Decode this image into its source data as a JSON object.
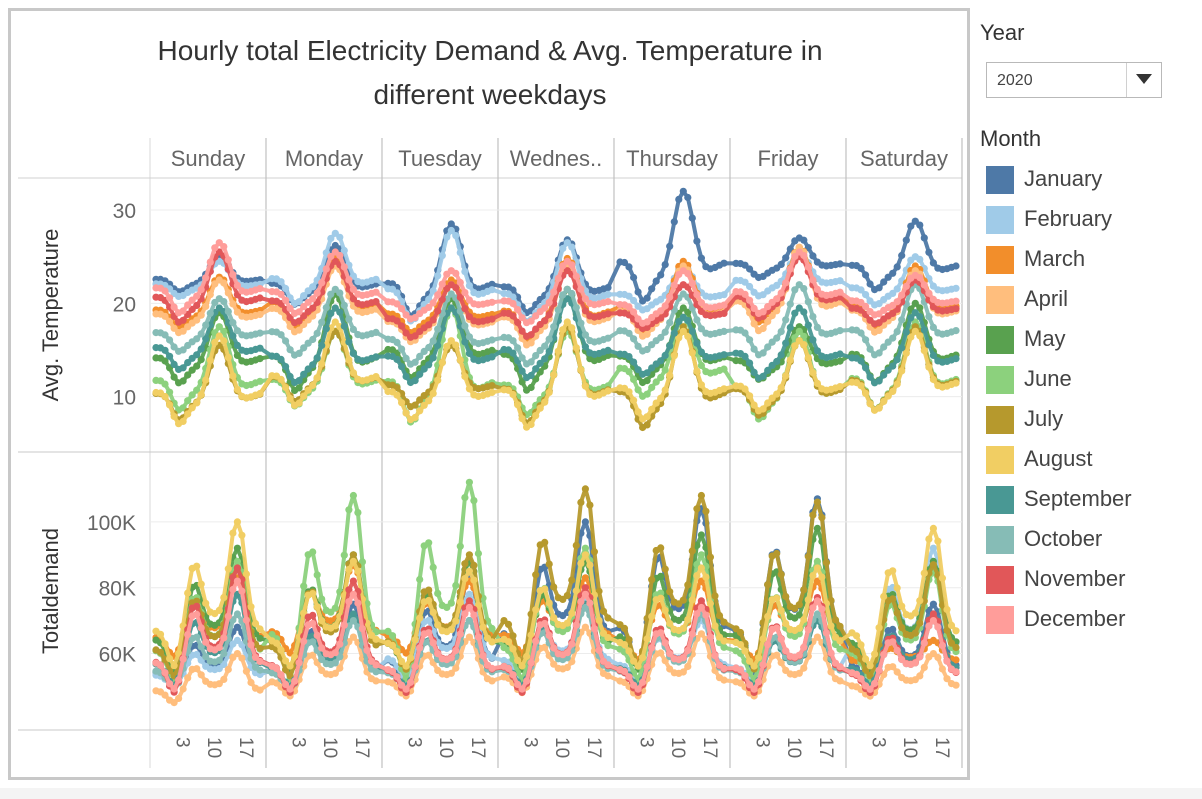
{
  "title_line1": "Hourly total Electricity Demand & Avg. Temperature in",
  "title_line2": "different weekdays",
  "filters": {
    "year_label": "Year",
    "year_value": "2020",
    "month_label": "Month"
  },
  "legend": [
    {
      "label": "January",
      "color": "#4e79a7"
    },
    {
      "label": "February",
      "color": "#a0cbe8"
    },
    {
      "label": "March",
      "color": "#f28e2b"
    },
    {
      "label": "April",
      "color": "#ffbe7d"
    },
    {
      "label": "May",
      "color": "#59a14f"
    },
    {
      "label": "June",
      "color": "#8cd17d"
    },
    {
      "label": "July",
      "color": "#b6992d"
    },
    {
      "label": "August",
      "color": "#f1ce63"
    },
    {
      "label": "September",
      "color": "#499894"
    },
    {
      "label": "October",
      "color": "#86bcb6"
    },
    {
      "label": "November",
      "color": "#e15759"
    },
    {
      "label": "December",
      "color": "#ff9d9a"
    }
  ],
  "chart_data": {
    "type": "line",
    "title": "Hourly total Electricity Demand & Avg. Temperature in different weekdays",
    "columns": [
      "Sunday",
      "Monday",
      "Tuesday",
      "Wednes..",
      "Thursday",
      "Friday",
      "Saturday"
    ],
    "x_ticks": [
      "3",
      "10",
      "17"
    ],
    "x_range": [
      0,
      23
    ],
    "grid": true,
    "legend_position": "right",
    "panels": [
      {
        "ylabel": "Avg. Temperature",
        "ylim": [
          4.5,
          33
        ],
        "yticks": [
          10,
          20,
          30
        ],
        "ytick_labels": [
          "10",
          "20",
          "30"
        ],
        "series": [
          {
            "name": "January",
            "peaks": [
              25,
              26.2,
              28.5,
              26.8,
              32,
              27,
              28.8
            ],
            "troughs": [
              21,
              19.5,
              18,
              18.5,
              19.5,
              22.5,
              21
            ]
          },
          {
            "name": "February",
            "peaks": [
              24.5,
              27.5,
              27.8,
              26.5,
              24,
              25.5,
              25
            ],
            "troughs": [
              20.5,
              19.5,
              17.5,
              17.5,
              19,
              20.5,
              19.5
            ]
          },
          {
            "name": "March",
            "peaks": [
              22.8,
              25,
              22.5,
              24.8,
              24.5,
              26,
              24
            ],
            "troughs": [
              17,
              17,
              16.5,
              15.5,
              16.5,
              17.5,
              17
            ]
          },
          {
            "name": "April",
            "peaks": [
              22.5,
              24,
              22,
              24,
              24,
              26,
              23.5
            ],
            "troughs": [
              16.5,
              16.5,
              15.5,
              15,
              16,
              16.5,
              16.5
            ]
          },
          {
            "name": "May",
            "peaks": [
              19,
              21,
              20.5,
              21.5,
              19.5,
              17.5,
              20
            ],
            "troughs": [
              11,
              10,
              11.5,
              10,
              11,
              11.5,
              11
            ]
          },
          {
            "name": "June",
            "peaks": [
              17.5,
              17,
              19.5,
              17,
              18.5,
              17,
              18
            ],
            "troughs": [
              8,
              8.5,
              6.5,
              7.5,
              9.5,
              7,
              8
            ]
          },
          {
            "name": "July",
            "peaks": [
              15.5,
              17,
              15.5,
              17.5,
              17.5,
              16,
              17.5
            ],
            "troughs": [
              7,
              9,
              8.5,
              6.5,
              6,
              7.5,
              8
            ]
          },
          {
            "name": "August",
            "peaks": [
              16.5,
              18,
              16,
              18,
              17,
              16,
              17
            ],
            "troughs": [
              6.5,
              8.5,
              7,
              6,
              7,
              8,
              8
            ]
          },
          {
            "name": "September",
            "peaks": [
              19.5,
              19.5,
              19.5,
              20.5,
              18.5,
              19.5,
              19
            ],
            "troughs": [
              12.5,
              11,
              11,
              11.5,
              12,
              11.5,
              11
            ]
          },
          {
            "name": "October",
            "peaks": [
              20.5,
              21.5,
              21,
              21.5,
              21,
              22,
              22
            ],
            "troughs": [
              14.5,
              14,
              13,
              13,
              14.5,
              14,
              14
            ]
          },
          {
            "name": "November",
            "peaks": [
              25.5,
              24.5,
              22,
              23.5,
              22,
              25,
              22.5
            ],
            "troughs": [
              17.5,
              17.5,
              16,
              16,
              17,
              18,
              17.5
            ]
          },
          {
            "name": "December",
            "peaks": [
              26.5,
              25.5,
              23.5,
              24.5,
              23.5,
              25.5,
              23
            ],
            "troughs": [
              18.5,
              18.5,
              18,
              17.5,
              17.5,
              18.5,
              18.5
            ]
          }
        ]
      },
      {
        "ylabel": "Totaldemand",
        "ylim": [
          38000,
          120000
        ],
        "yticks": [
          60000,
          80000,
          100000
        ],
        "ytick_labels": [
          "60K",
          "80K",
          "100K"
        ],
        "series": [
          {
            "name": "January",
            "peaks": [
              68000,
              75000,
              83000,
              100000,
              104000,
              107000,
              75000
            ],
            "troughs": [
              50000,
              48000,
              50000,
              55000,
              56000,
              54000,
              50000
            ]
          },
          {
            "name": "February",
            "peaks": [
              64000,
              70000,
              78000,
              76000,
              70000,
              70000,
              92000
            ],
            "troughs": [
              50000,
              50000,
              52000,
              52000,
              52000,
              51000,
              53000
            ]
          },
          {
            "name": "March",
            "peaks": [
              83000,
              87000,
              82000,
              83000,
              82000,
              82000,
              64000
            ],
            "troughs": [
              59000,
              60000,
              60000,
              60000,
              58000,
              58000,
              56000
            ]
          },
          {
            "name": "April",
            "peaks": [
              60000,
              65000,
              65000,
              68000,
              66000,
              65000,
              60000
            ],
            "troughs": [
              45000,
              47000,
              47000,
              48000,
              47000,
              47000,
              47000
            ]
          },
          {
            "name": "May",
            "peaks": [
              92000,
              90000,
              88000,
              88000,
              96000,
              98000,
              88000
            ],
            "troughs": [
              55000,
              55000,
              55000,
              55000,
              55000,
              55000,
              55000
            ]
          },
          {
            "name": "June",
            "peaks": [
              88000,
              108000,
              112000,
              92000,
              90000,
              88000,
              85000
            ],
            "troughs": [
              52000,
              52000,
              52000,
              52000,
              52000,
              52000,
              52000
            ]
          },
          {
            "name": "July",
            "peaks": [
              86000,
              90000,
              90000,
              110000,
              108000,
              106000,
              87000
            ],
            "troughs": [
              53000,
              53000,
              55000,
              57000,
              56000,
              55000,
              53000
            ]
          },
          {
            "name": "August",
            "peaks": [
              100000,
              88000,
              85000,
              90000,
              86000,
              86000,
              98000
            ],
            "troughs": [
              56000,
              56000,
              56000,
              56000,
              56000,
              56000,
              56000
            ]
          },
          {
            "name": "September",
            "peaks": [
              78000,
              72000,
              70000,
              75000,
              72000,
              70000,
              72000
            ],
            "troughs": [
              50000,
              50000,
              50000,
              50000,
              50000,
              50000,
              50000
            ]
          },
          {
            "name": "October",
            "peaks": [
              72000,
              70000,
              70000,
              74000,
              72000,
              72000,
              70000
            ],
            "troughs": [
              49000,
              49000,
              49000,
              49000,
              49000,
              49000,
              49000
            ]
          },
          {
            "name": "November",
            "peaks": [
              86000,
              82000,
              76000,
              80000,
              76000,
              77000,
              72000
            ],
            "troughs": [
              48000,
              48000,
              48000,
              48000,
              48000,
              48000,
              48000
            ]
          },
          {
            "name": "December",
            "peaks": [
              82000,
              78000,
              74000,
              78000,
              74000,
              76000,
              70000
            ],
            "troughs": [
              49000,
              49000,
              49000,
              49000,
              49000,
              49000,
              49000
            ]
          }
        ]
      }
    ]
  }
}
